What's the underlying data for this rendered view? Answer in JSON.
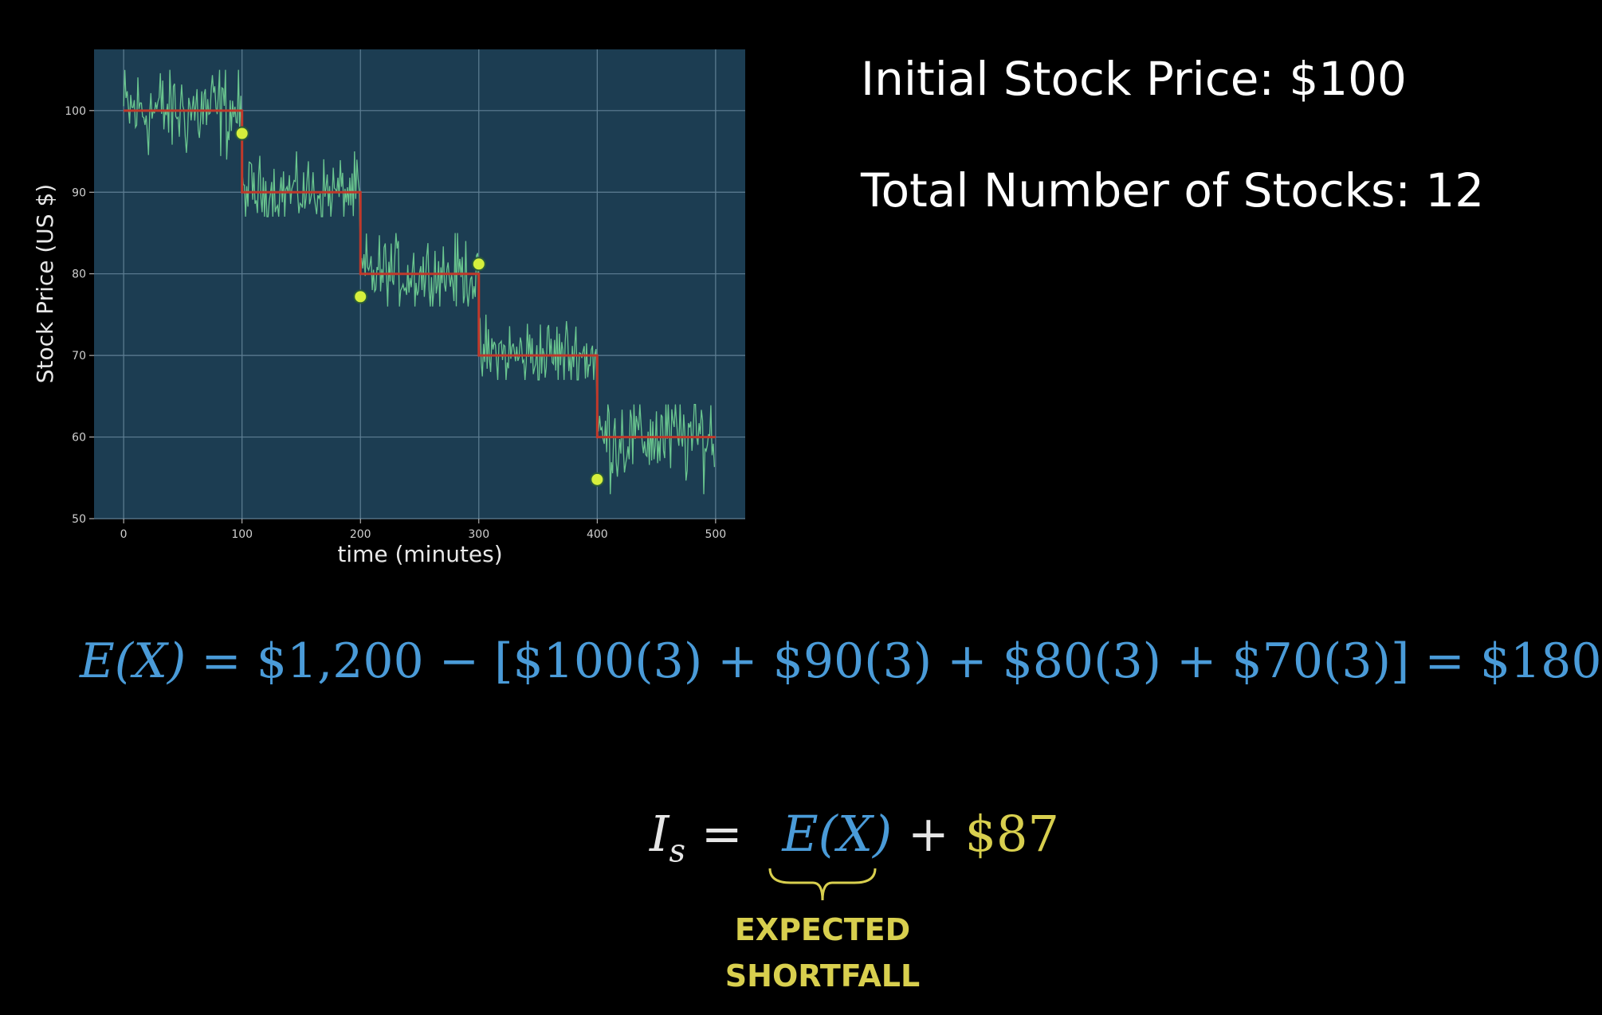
{
  "chart_data": {
    "type": "line",
    "xlabel": "time (minutes)",
    "ylabel": "Stock Price (US $)",
    "xlim": [
      -25,
      525
    ],
    "ylim": [
      50,
      107.5
    ],
    "x_ticks": [
      0,
      100,
      200,
      300,
      400,
      500
    ],
    "y_ticks": [
      50,
      60,
      70,
      80,
      90,
      100
    ],
    "grid": true,
    "background_color": "#1c3d52",
    "noisy_series_color": "#6fce92",
    "step_series_color": "#c0392b",
    "point_color": "#d6ef3c",
    "series": [
      {
        "kind": "noisy_price",
        "segments": [
          {
            "x_start": 0,
            "x_end": 100,
            "mean": 100,
            "min": 94,
            "max": 105
          },
          {
            "x_start": 100,
            "x_end": 200,
            "mean": 90,
            "min": 87,
            "max": 95
          },
          {
            "x_start": 200,
            "x_end": 300,
            "mean": 80,
            "min": 76,
            "max": 85
          },
          {
            "x_start": 300,
            "x_end": 400,
            "mean": 70,
            "min": 67,
            "max": 76
          },
          {
            "x_start": 400,
            "x_end": 500,
            "mean": 60,
            "min": 53,
            "max": 64
          }
        ]
      },
      {
        "kind": "step_price",
        "x": [
          0,
          100,
          100,
          200,
          200,
          300,
          300,
          400,
          400,
          500
        ],
        "y": [
          100,
          100,
          90,
          90,
          80,
          80,
          70,
          70,
          60,
          60
        ]
      },
      {
        "kind": "points",
        "x": [
          100,
          200,
          300,
          400
        ],
        "y": [
          97.2,
          77.2,
          81.2,
          54.8
        ]
      }
    ]
  },
  "info": {
    "initial_price": "Initial Stock Price: $100",
    "total_stocks": "Total Number of Stocks: 12"
  },
  "equation_main": {
    "lhs": "E(X)",
    "rhs": "= $1,200 − [$100(3) + $90(3) + $80(3) + $70(3)] = $180"
  },
  "equation_is": {
    "symbol": "I",
    "subscript": "s",
    "equals": "=",
    "ex_term": "E(X)",
    "plus": "+",
    "extra": "$87",
    "brace_label_line1": "EXPECTED",
    "brace_label_line2": "SHORTFALL"
  }
}
